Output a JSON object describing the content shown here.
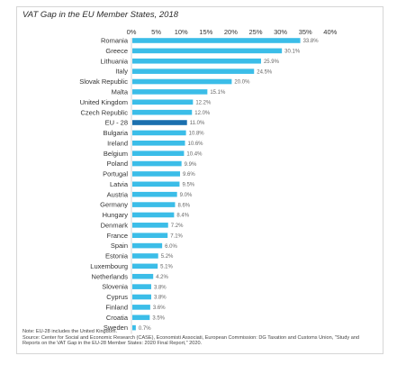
{
  "chart_data": {
    "type": "bar",
    "orientation": "horizontal",
    "title": "VAT Gap in the EU Member States, 2018",
    "xlim": [
      0,
      40
    ],
    "x_ticks": [
      "0%",
      "5%",
      "10%",
      "15%",
      "20%",
      "25%",
      "30%",
      "35%",
      "40%"
    ],
    "x_axis_position": "top",
    "grid": false,
    "legend": "none",
    "categories": [
      "Romania",
      "Greece",
      "Lithuania",
      "Italy",
      "Slovak Republic",
      "Malta",
      "United Kingdom",
      "Czech Republic",
      "EU - 28",
      "Bulgaria",
      "Ireland",
      "Belgium",
      "Poland",
      "Portugal",
      "Latvia",
      "Austria",
      "Germany",
      "Hungary",
      "Denmark",
      "France",
      "Spain",
      "Estonia",
      "Luxembourg",
      "Netherlands",
      "Slovenia",
      "Cyprus",
      "Finland",
      "Croatia",
      "Sweden"
    ],
    "values": [
      33.8,
      30.1,
      25.9,
      24.5,
      20.0,
      15.1,
      12.2,
      12.0,
      11.0,
      10.8,
      10.6,
      10.4,
      9.9,
      9.6,
      9.5,
      9.0,
      8.6,
      8.4,
      7.2,
      7.1,
      6.0,
      5.2,
      5.1,
      4.2,
      3.8,
      3.8,
      3.6,
      3.5,
      0.7
    ],
    "value_labels": [
      "33.8%",
      "30.1%",
      "25.9%",
      "24.5%",
      "20.0%",
      "15.1%",
      "12.2%",
      "12.0%",
      "11.0%",
      "10.8%",
      "10.6%",
      "10.4%",
      "9.9%",
      "9.6%",
      "9.5%",
      "9.0%",
      "8.6%",
      "8.4%",
      "7.2%",
      "7.1%",
      "6.0%",
      "5.2%",
      "5.1%",
      "4.2%",
      "3.8%",
      "3.8%",
      "3.6%",
      "3.5%",
      "0.7%"
    ],
    "highlight_category": "EU - 28",
    "colors": {
      "bar": "#3bbde8",
      "highlight": "#1a6fae",
      "axis": "#cccccc"
    }
  },
  "notes": [
    "Note: EU-28 includes the United Kingdom.",
    "Source: Center for Social and Economic Research (CASE), Economisti Associati, European Commission: DG Taxation and Customs Union, \"Study and",
    "Reports on the VAT Gap in the EU-28 Member States: 2020 Final Report,\" 2020."
  ]
}
